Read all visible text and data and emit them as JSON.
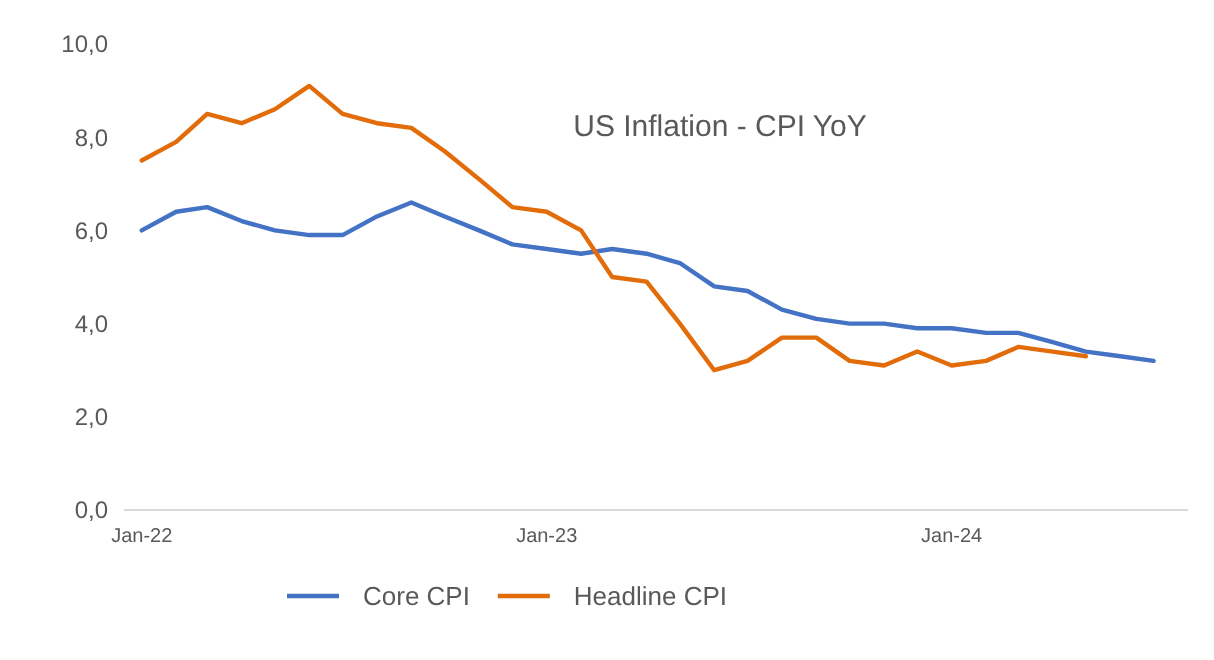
{
  "chart_data": {
    "type": "line",
    "title": "US Inflation - CPI YoY",
    "xlim": [
      "2021-12-16",
      "2024-08-01"
    ],
    "xticks": [
      {
        "value": "2022-01",
        "label": "Jan-22"
      },
      {
        "value": "2023-01",
        "label": "Jan-23"
      },
      {
        "value": "2024-01",
        "label": "Jan-24"
      }
    ],
    "ylim": [
      0,
      10
    ],
    "yticks": [
      {
        "value": 0,
        "label": "0,0"
      },
      {
        "value": 2,
        "label": "2,0"
      },
      {
        "value": 4,
        "label": "4,0"
      },
      {
        "value": 6,
        "label": "6,0"
      },
      {
        "value": 8,
        "label": "8,0"
      },
      {
        "value": 10,
        "label": "10,0"
      }
    ],
    "grid": false,
    "legend": "bottom",
    "marker": "none",
    "line_style": "solid",
    "series": [
      {
        "name": "Core CPI",
        "color": "#4472c4",
        "x": [
          "2022-01",
          "2022-02",
          "2022-03",
          "2022-04",
          "2022-05",
          "2022-06",
          "2022-07",
          "2022-08",
          "2022-09",
          "2022-10",
          "2022-11",
          "2022-12",
          "2023-01",
          "2023-02",
          "2023-03",
          "2023-04",
          "2023-05",
          "2023-06",
          "2023-07",
          "2023-08",
          "2023-09",
          "2023-10",
          "2023-11",
          "2023-12",
          "2024-01",
          "2024-02",
          "2024-03",
          "2024-04",
          "2024-05",
          "2024-06",
          "2024-07"
        ],
        "values": [
          6.0,
          6.4,
          6.5,
          6.2,
          6.0,
          5.9,
          5.9,
          6.3,
          6.6,
          6.3,
          6.0,
          5.7,
          5.6,
          5.5,
          5.6,
          5.5,
          5.3,
          4.8,
          4.7,
          4.3,
          4.1,
          4.0,
          4.0,
          3.9,
          3.9,
          3.8,
          3.8,
          3.6,
          3.4,
          3.3,
          3.2
        ]
      },
      {
        "name": "Headline CPI",
        "color": "#e36c0a",
        "x": [
          "2022-01",
          "2022-02",
          "2022-03",
          "2022-04",
          "2022-05",
          "2022-06",
          "2022-07",
          "2022-08",
          "2022-09",
          "2022-10",
          "2022-11",
          "2022-12",
          "2023-01",
          "2023-02",
          "2023-03",
          "2023-04",
          "2023-05",
          "2023-06",
          "2023-07",
          "2023-08",
          "2023-09",
          "2023-10",
          "2023-11",
          "2023-12",
          "2024-01",
          "2024-02",
          "2024-03",
          "2024-04",
          "2024-05"
        ],
        "values": [
          7.5,
          7.9,
          8.5,
          8.3,
          8.6,
          9.1,
          8.5,
          8.3,
          8.2,
          7.7,
          7.1,
          6.5,
          6.4,
          6.0,
          5.0,
          4.9,
          4.0,
          3.0,
          3.2,
          3.7,
          3.7,
          3.2,
          3.1,
          3.4,
          3.1,
          3.2,
          3.5,
          3.4,
          3.3
        ]
      }
    ]
  }
}
